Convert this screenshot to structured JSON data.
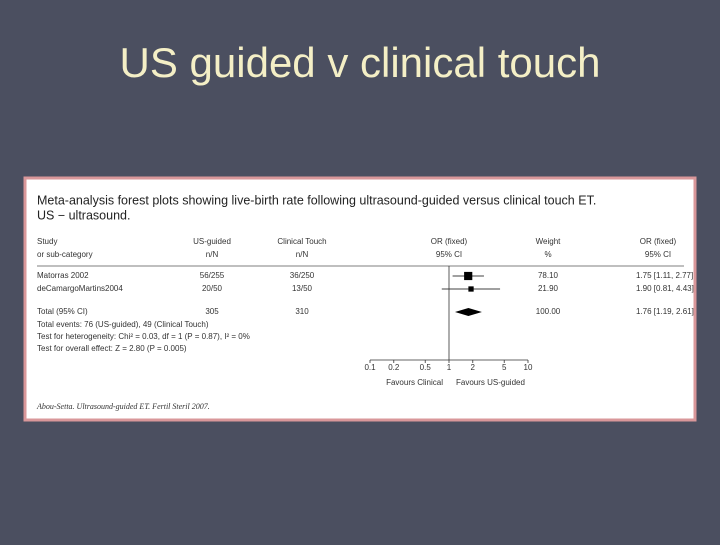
{
  "title": "US guided v clinical touch",
  "chart_data": {
    "type": "forest",
    "title": "Meta-analysis forest plots showing live-birth rate following ultrasound-guided versus clinical touch ET.",
    "subtitle": "US − ultrasound.",
    "headers": [
      [
        "Study",
        "or sub-category"
      ],
      [
        "US-guided",
        "n/N"
      ],
      [
        "Clinical Touch",
        "n/N"
      ],
      [
        "OR (fixed)",
        "95% CI"
      ],
      [
        "Weight",
        "%"
      ],
      [
        "OR (fixed)",
        "95% CI"
      ]
    ],
    "studies": [
      {
        "name": "Matorras 2002",
        "us": "56/255",
        "ct": "36/250",
        "weight": 78.1,
        "weight_label": "78.10",
        "or": 1.75,
        "ci_low": 1.11,
        "ci_high": 2.77,
        "or_label": "1.75 [1.11, 2.77]"
      },
      {
        "name": "deCamargoMartins2004",
        "us": "20/50",
        "ct": "13/50",
        "weight": 21.9,
        "weight_label": "21.90",
        "or": 1.9,
        "ci_low": 0.81,
        "ci_high": 4.43,
        "or_label": "1.90 [0.81, 4.43]"
      }
    ],
    "total": {
      "name": "Total (95% CI)",
      "us": "305",
      "ct": "310",
      "weight": 100,
      "weight_label": "100.00",
      "or": 1.76,
      "ci_low": 1.19,
      "ci_high": 2.61,
      "or_label": "1.76 [1.19, 2.61]"
    },
    "notes": [
      "Total events: 76 (US-guided), 49 (Clinical Touch)",
      "Test for heterogeneity: Chi² = 0.03, df = 1 (P = 0.87), I² = 0%",
      "Test for overall effect: Z = 2.80 (P = 0.005)"
    ],
    "xlim": [
      0.1,
      10
    ],
    "xticks": [
      0.1,
      0.2,
      0.5,
      1,
      2,
      5,
      10
    ],
    "log_x": true,
    "favours": [
      "Favours Clinical",
      "Favours US-guided"
    ],
    "source": "Abou-Setta. Ultrasound-guided ET. Fertil Steril 2007.",
    "color": "#000000"
  }
}
